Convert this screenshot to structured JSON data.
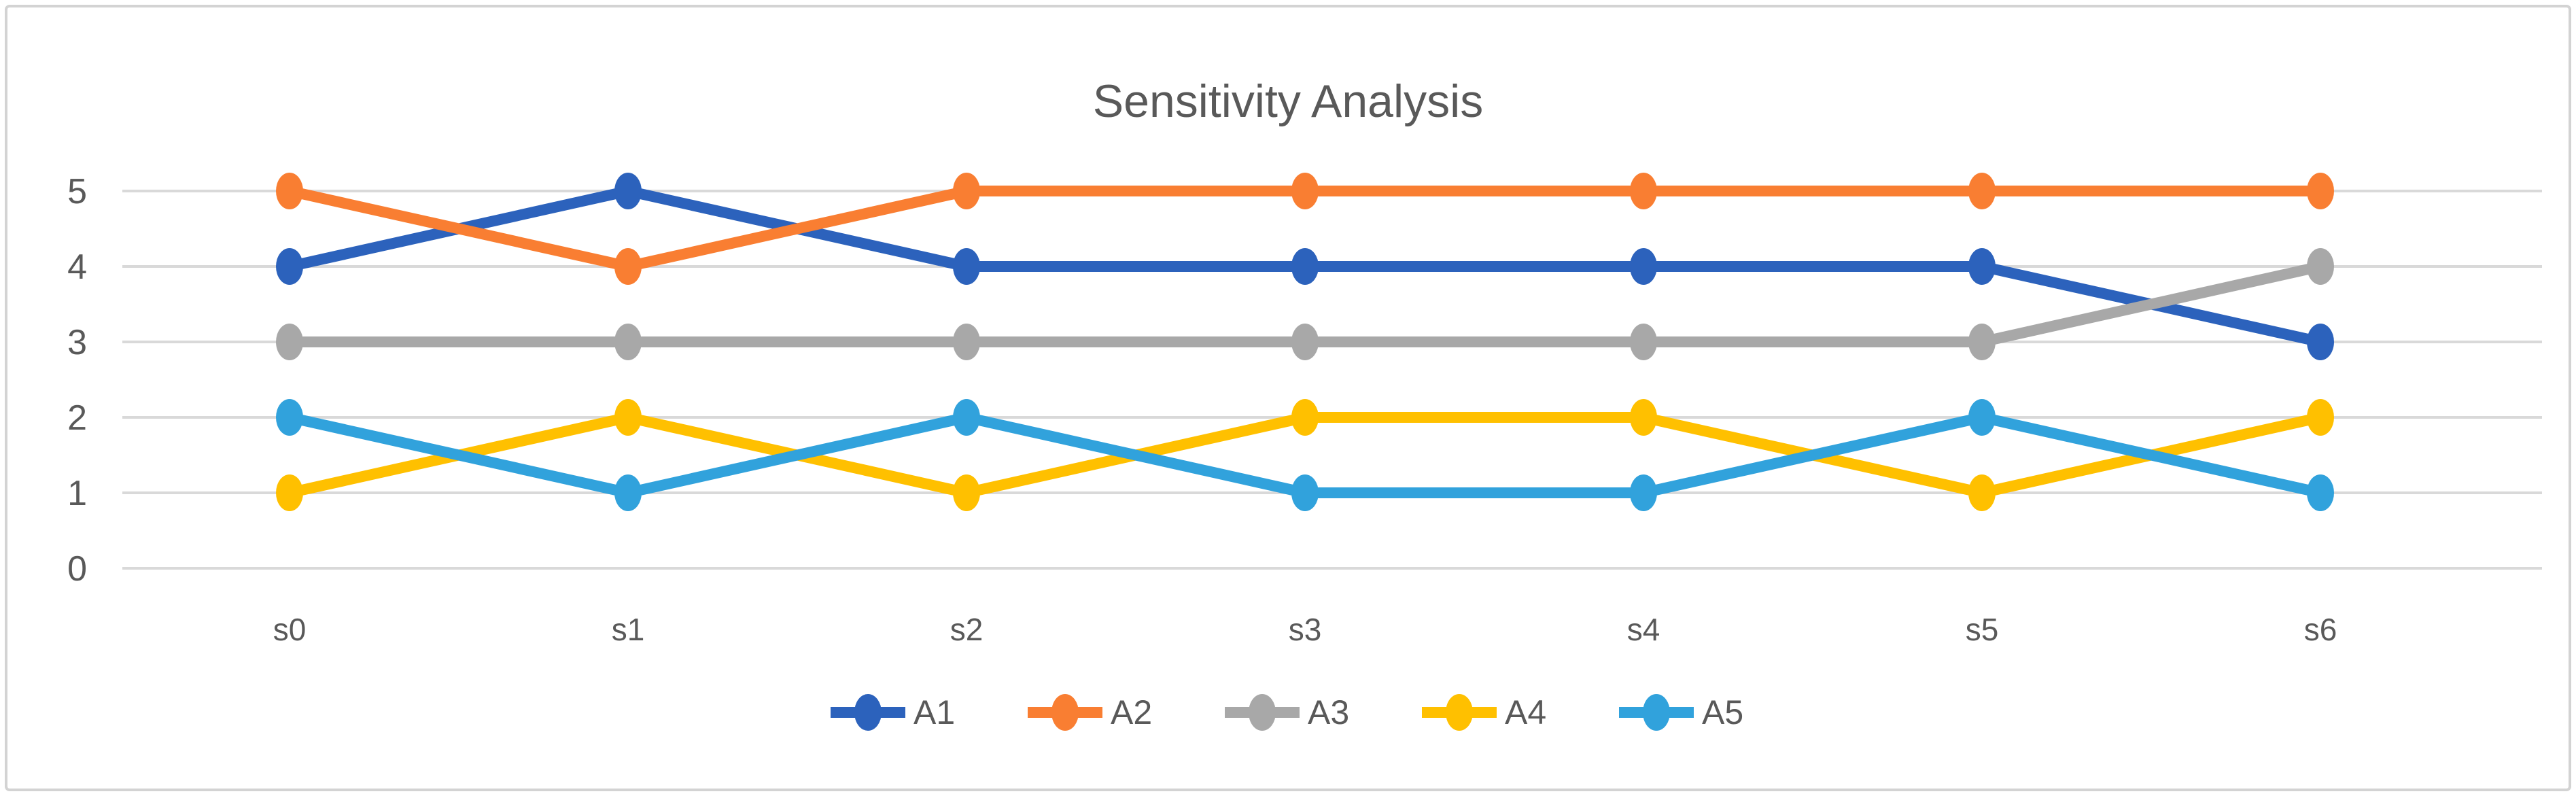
{
  "figure": {
    "title": "Sensitivity Analysis"
  },
  "chart_data": {
    "type": "line",
    "title": "Sensitivity Analysis",
    "categories": [
      "s0",
      "s1",
      "s2",
      "s3",
      "s4",
      "s5",
      "s6"
    ],
    "series": [
      {
        "name": "A1",
        "color": "#2C62BC",
        "values": [
          4,
          5,
          4,
          4,
          4,
          4,
          3
        ]
      },
      {
        "name": "A2",
        "color": "#F97E32",
        "values": [
          5,
          4,
          5,
          5,
          5,
          5,
          5
        ]
      },
      {
        "name": "A3",
        "color": "#A8A8A8",
        "values": [
          3,
          3,
          3,
          3,
          3,
          3,
          4
        ]
      },
      {
        "name": "A4",
        "color": "#FFC000",
        "values": [
          1,
          2,
          1,
          2,
          2,
          1,
          2
        ]
      },
      {
        "name": "A5",
        "color": "#31A2DC",
        "values": [
          2,
          1,
          2,
          1,
          1,
          2,
          1
        ]
      }
    ],
    "xlabel": "",
    "ylabel": "",
    "ylim": [
      0,
      5
    ],
    "yticks": [
      0,
      1,
      2,
      3,
      4,
      5
    ],
    "grid": true,
    "legend_position": "bottom"
  },
  "colors": {
    "grid": "#D9D9D9",
    "axis_text": "#595959",
    "title_text": "#595959",
    "border": "#D3D3D3",
    "background": "#FFFFFF"
  }
}
